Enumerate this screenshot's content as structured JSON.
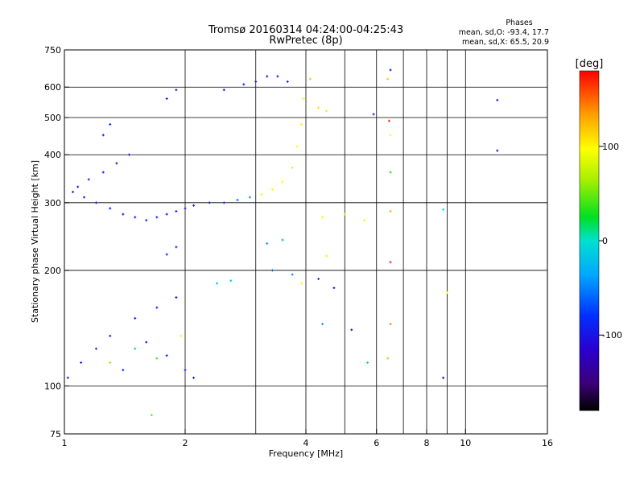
{
  "chart_data": {
    "type": "scatter",
    "title": "Tromsø 20160314 04:24:00-04:25:43",
    "subtitle": "RwPretec (8p)",
    "xlabel": "Frequency [MHz]",
    "ylabel": "Stationary phase Virtual Height [km]",
    "x_scale": "log",
    "y_scale": "log",
    "xlim": [
      1,
      16
    ],
    "ylim": [
      75,
      750
    ],
    "x_ticks": [
      "1",
      "2",
      "4",
      "6",
      "8",
      "10",
      "16"
    ],
    "y_ticks": [
      "75",
      "100",
      "200",
      "300",
      "400",
      "500",
      "600",
      "750"
    ],
    "grid": true,
    "stats": {
      "heading": "Phases",
      "line_o": "mean, sd,O: -93.4, 17.7",
      "line_x": "mean, sd,X: 65.5, 20.9"
    },
    "colorbar": {
      "label": "[deg]",
      "ticks": [
        "100",
        "0",
        "-100"
      ],
      "tick_values": [
        100,
        0,
        -100
      ],
      "range": [
        -180,
        180
      ],
      "colormap": "rainbow"
    },
    "series": [
      {
        "points": [
          {
            "x": 1.05,
            "y": 320,
            "phase": -95
          },
          {
            "x": 1.08,
            "y": 330,
            "phase": -100
          },
          {
            "x": 1.12,
            "y": 310,
            "phase": -90
          },
          {
            "x": 1.15,
            "y": 345,
            "phase": -95
          },
          {
            "x": 1.2,
            "y": 300,
            "phase": -100
          },
          {
            "x": 1.25,
            "y": 360,
            "phase": -90
          },
          {
            "x": 1.3,
            "y": 290,
            "phase": -95
          },
          {
            "x": 1.35,
            "y": 380,
            "phase": -100
          },
          {
            "x": 1.4,
            "y": 280,
            "phase": -90
          },
          {
            "x": 1.45,
            "y": 400,
            "phase": -95
          },
          {
            "x": 1.5,
            "y": 275,
            "phase": -100
          },
          {
            "x": 1.6,
            "y": 270,
            "phase": -90
          },
          {
            "x": 1.7,
            "y": 275,
            "phase": -95
          },
          {
            "x": 1.8,
            "y": 280,
            "phase": -100
          },
          {
            "x": 1.9,
            "y": 285,
            "phase": -90
          },
          {
            "x": 2.0,
            "y": 290,
            "phase": -95
          },
          {
            "x": 2.1,
            "y": 295,
            "phase": -100
          },
          {
            "x": 2.3,
            "y": 300,
            "phase": -90
          },
          {
            "x": 2.5,
            "y": 300,
            "phase": -80
          },
          {
            "x": 2.7,
            "y": 305,
            "phase": -60
          },
          {
            "x": 2.9,
            "y": 310,
            "phase": -40
          },
          {
            "x": 3.1,
            "y": 315,
            "phase": 90
          },
          {
            "x": 3.3,
            "y": 325,
            "phase": 95
          },
          {
            "x": 3.5,
            "y": 340,
            "phase": 100
          },
          {
            "x": 3.7,
            "y": 370,
            "phase": 105
          },
          {
            "x": 3.8,
            "y": 420,
            "phase": 100
          },
          {
            "x": 3.9,
            "y": 480,
            "phase": 95
          },
          {
            "x": 3.95,
            "y": 560,
            "phase": 90
          },
          {
            "x": 3.0,
            "y": 620,
            "phase": -95
          },
          {
            "x": 3.2,
            "y": 640,
            "phase": -100
          },
          {
            "x": 3.4,
            "y": 640,
            "phase": -90
          },
          {
            "x": 3.6,
            "y": 620,
            "phase": -95
          },
          {
            "x": 2.5,
            "y": 590,
            "phase": -100
          },
          {
            "x": 2.8,
            "y": 610,
            "phase": -90
          },
          {
            "x": 1.8,
            "y": 560,
            "phase": -95
          },
          {
            "x": 1.9,
            "y": 590,
            "phase": -100
          },
          {
            "x": 1.3,
            "y": 480,
            "phase": -95
          },
          {
            "x": 1.25,
            "y": 450,
            "phase": -100
          },
          {
            "x": 1.02,
            "y": 105,
            "phase": -100
          },
          {
            "x": 1.1,
            "y": 115,
            "phase": -95
          },
          {
            "x": 1.2,
            "y": 125,
            "phase": -90
          },
          {
            "x": 1.3,
            "y": 135,
            "phase": -100
          },
          {
            "x": 1.4,
            "y": 110,
            "phase": -95
          },
          {
            "x": 1.5,
            "y": 150,
            "phase": -90
          },
          {
            "x": 1.6,
            "y": 130,
            "phase": -100
          },
          {
            "x": 1.7,
            "y": 160,
            "phase": -95
          },
          {
            "x": 1.8,
            "y": 120,
            "phase": -90
          },
          {
            "x": 1.9,
            "y": 170,
            "phase": -100
          },
          {
            "x": 2.0,
            "y": 110,
            "phase": -95
          },
          {
            "x": 2.1,
            "y": 105,
            "phase": -90
          },
          {
            "x": 1.3,
            "y": 115,
            "phase": 60
          },
          {
            "x": 1.5,
            "y": 125,
            "phase": 20
          },
          {
            "x": 1.7,
            "y": 118,
            "phase": 40
          },
          {
            "x": 1.95,
            "y": 135,
            "phase": 90
          },
          {
            "x": 1.65,
            "y": 84,
            "phase": 50
          },
          {
            "x": 1.8,
            "y": 220,
            "phase": -90
          },
          {
            "x": 1.9,
            "y": 230,
            "phase": -80
          },
          {
            "x": 2.4,
            "y": 185,
            "phase": -20
          },
          {
            "x": 2.6,
            "y": 188,
            "phase": -10
          },
          {
            "x": 3.2,
            "y": 235,
            "phase": -40
          },
          {
            "x": 3.5,
            "y": 240,
            "phase": -30
          },
          {
            "x": 3.3,
            "y": 200,
            "phase": -60
          },
          {
            "x": 3.7,
            "y": 195,
            "phase": -50
          },
          {
            "x": 3.9,
            "y": 185,
            "phase": 95
          },
          {
            "x": 4.3,
            "y": 190,
            "phase": -80
          },
          {
            "x": 4.7,
            "y": 180,
            "phase": -100
          },
          {
            "x": 4.5,
            "y": 218,
            "phase": 90
          },
          {
            "x": 4.4,
            "y": 275,
            "phase": 100
          },
          {
            "x": 5.0,
            "y": 280,
            "phase": 110
          },
          {
            "x": 5.6,
            "y": 270,
            "phase": 90
          },
          {
            "x": 5.9,
            "y": 510,
            "phase": -95
          },
          {
            "x": 4.3,
            "y": 530,
            "phase": 110
          },
          {
            "x": 4.5,
            "y": 520,
            "phase": 90
          },
          {
            "x": 4.1,
            "y": 630,
            "phase": 120
          },
          {
            "x": 6.5,
            "y": 665,
            "phase": -100
          },
          {
            "x": 6.4,
            "y": 630,
            "phase": 120
          },
          {
            "x": 6.45,
            "y": 490,
            "phase": 170
          },
          {
            "x": 6.5,
            "y": 450,
            "phase": 100
          },
          {
            "x": 6.5,
            "y": 360,
            "phase": 30
          },
          {
            "x": 6.5,
            "y": 285,
            "phase": 130
          },
          {
            "x": 6.5,
            "y": 210,
            "phase": 170
          },
          {
            "x": 6.5,
            "y": 145,
            "phase": 140
          },
          {
            "x": 6.4,
            "y": 118,
            "phase": 60
          },
          {
            "x": 8.8,
            "y": 288,
            "phase": 0
          },
          {
            "x": 8.8,
            "y": 105,
            "phase": -120
          },
          {
            "x": 9.0,
            "y": 175,
            "phase": 100
          },
          {
            "x": 12.0,
            "y": 555,
            "phase": -100
          },
          {
            "x": 12.0,
            "y": 410,
            "phase": -100
          },
          {
            "x": 4.4,
            "y": 145,
            "phase": -40
          },
          {
            "x": 5.2,
            "y": 140,
            "phase": -100
          },
          {
            "x": 5.7,
            "y": 115,
            "phase": 20
          }
        ]
      }
    ]
  }
}
